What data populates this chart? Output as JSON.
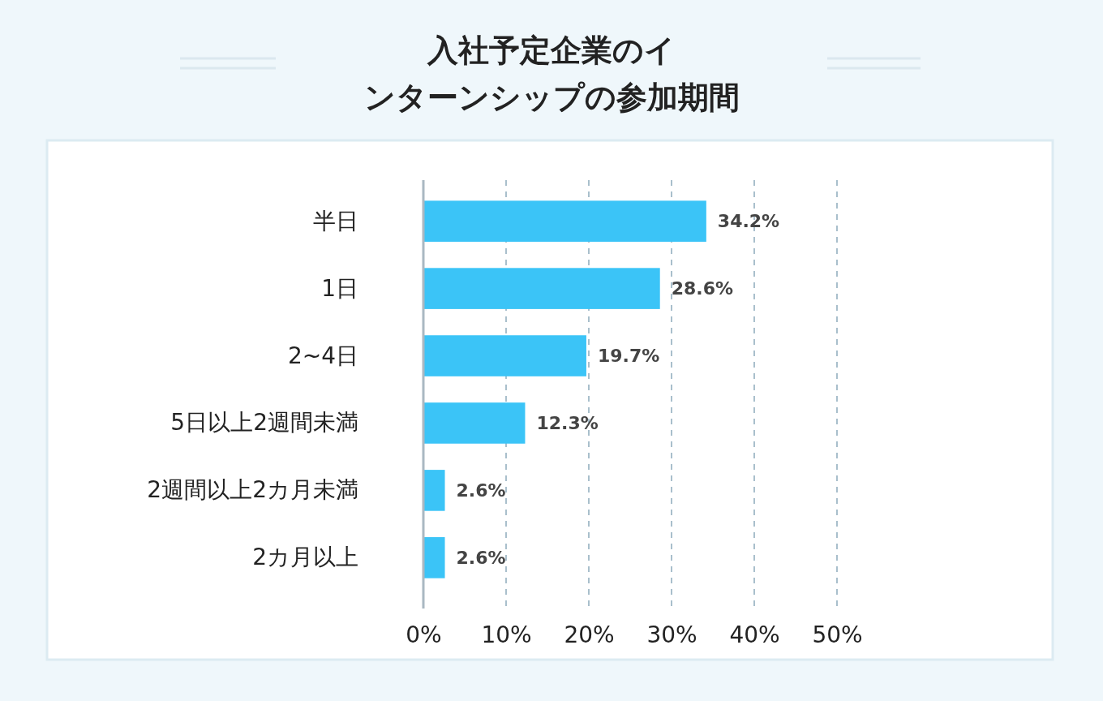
{
  "chart_data": {
    "type": "bar",
    "orientation": "horizontal",
    "title": "入社予定企業のインターンシップの参加期間",
    "categories": [
      "半日",
      "1日",
      "2~4日",
      "5日以上2週間未満",
      "2週間以上2カ月未満",
      "2カ月以上"
    ],
    "values": [
      34.2,
      28.6,
      19.7,
      12.3,
      2.6,
      2.6
    ],
    "value_labels": [
      "34.2%",
      "28.6%",
      "19.7%",
      "12.3%",
      "2.6%",
      "2.6%"
    ],
    "color": "#3bc4f7",
    "xlim": [
      0,
      50
    ],
    "xticks": [
      {
        "value": 0,
        "label": "0%"
      },
      {
        "value": 10,
        "label": "10%"
      },
      {
        "value": 20,
        "label": "20%"
      },
      {
        "value": 30,
        "label": "30%"
      },
      {
        "value": 40,
        "label": "40%"
      },
      {
        "value": 50,
        "label": "50%"
      }
    ],
    "grid": "x"
  }
}
